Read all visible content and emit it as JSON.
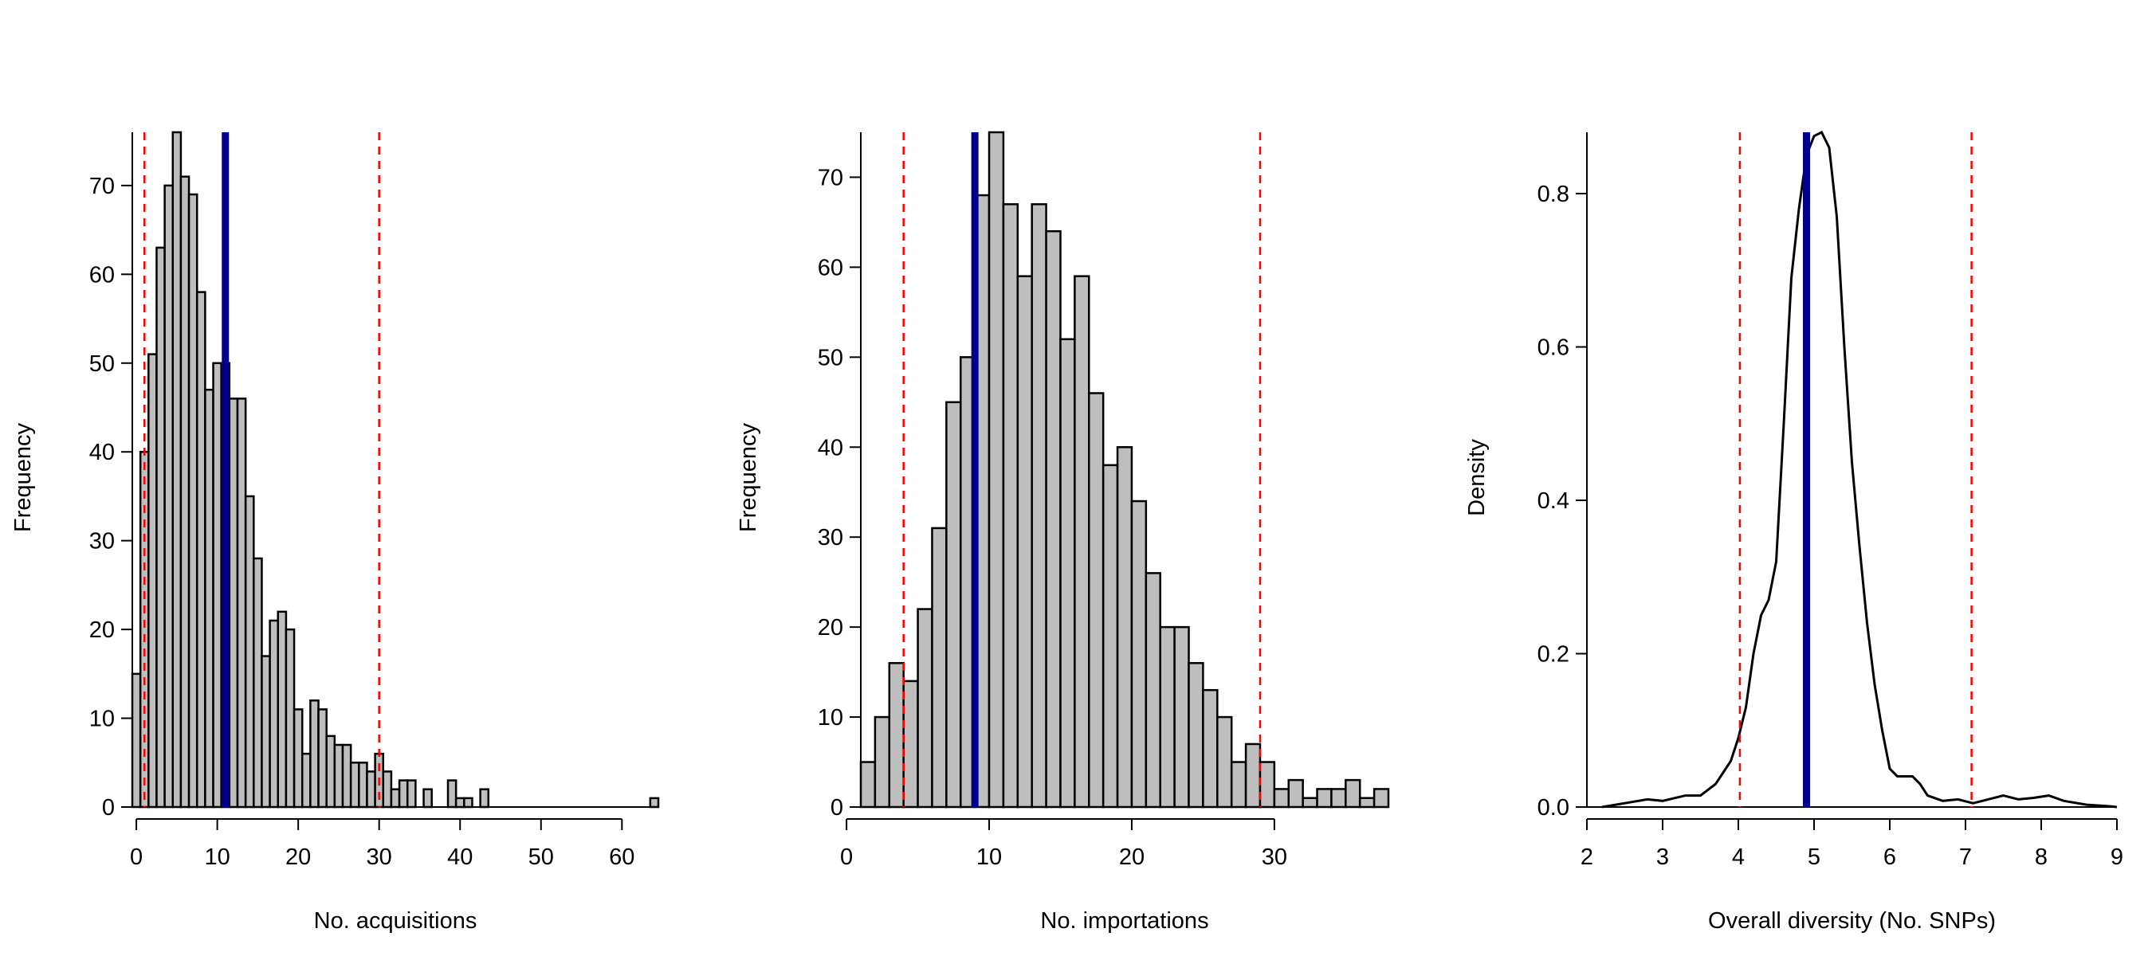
{
  "chart_data": [
    {
      "type": "bar",
      "subtype": "histogram",
      "title": "",
      "xlabel": "No. acquisitions",
      "ylabel": "Frequency",
      "xlim": [
        -0.5,
        64.5
      ],
      "ylim": [
        0,
        76
      ],
      "xticks": [
        0,
        10,
        20,
        30,
        40,
        50,
        60
      ],
      "yticks": [
        0,
        10,
        20,
        30,
        40,
        50,
        60,
        70
      ],
      "bin_start": -0.5,
      "bin_width": 1,
      "values": [
        15,
        40,
        51,
        63,
        70,
        76,
        71,
        69,
        58,
        47,
        50,
        50,
        46,
        46,
        35,
        28,
        17,
        21,
        22,
        20,
        11,
        6,
        12,
        11,
        8,
        7,
        7,
        5,
        5,
        4,
        6,
        4,
        2,
        3,
        3,
        0,
        2,
        0,
        0,
        3,
        1,
        1,
        0,
        2,
        0,
        0,
        0,
        0,
        0,
        0,
        0,
        0,
        0,
        0,
        0,
        0,
        0,
        0,
        0,
        0,
        0,
        0,
        0,
        0,
        1
      ],
      "observed": 11,
      "interval": [
        1,
        30
      ],
      "colors": {
        "bar": "#bebebe",
        "observed": "#00008b",
        "interval": "#ff0000"
      }
    },
    {
      "type": "bar",
      "subtype": "histogram",
      "title": "",
      "xlabel": "No. importations",
      "ylabel": "Frequency",
      "xlim": [
        1,
        38
      ],
      "ylim": [
        0,
        75
      ],
      "xticks": [
        0,
        10,
        20,
        30
      ],
      "yticks": [
        0,
        10,
        20,
        30,
        40,
        50,
        60,
        70
      ],
      "bin_start": 1,
      "bin_width": 1,
      "values": [
        5,
        10,
        16,
        14,
        22,
        31,
        45,
        50,
        68,
        75,
        67,
        59,
        67,
        64,
        52,
        59,
        46,
        38,
        40,
        34,
        26,
        20,
        20,
        16,
        13,
        10,
        5,
        7,
        5,
        2,
        3,
        1,
        2,
        2,
        3,
        1,
        2
      ],
      "observed": 9,
      "interval": [
        4,
        29
      ],
      "colors": {
        "bar": "#bebebe",
        "observed": "#00008b",
        "interval": "#ff0000"
      }
    },
    {
      "type": "line",
      "subtype": "density",
      "title": "",
      "xlabel": "Overall diversity (No. SNPs)",
      "ylabel": "Density",
      "xlim": [
        2,
        9
      ],
      "ylim": [
        0,
        0.88
      ],
      "xticks": [
        2,
        3,
        4,
        5,
        6,
        7,
        8,
        9
      ],
      "yticks": [
        0.0,
        0.2,
        0.4,
        0.6,
        0.8
      ],
      "ytick_labels": [
        "0.0",
        "0.2",
        "0.4",
        "0.6",
        "0.8"
      ],
      "x": [
        2.2,
        2.5,
        2.8,
        3.0,
        3.3,
        3.5,
        3.7,
        3.9,
        4.0,
        4.1,
        4.2,
        4.3,
        4.4,
        4.5,
        4.6,
        4.7,
        4.8,
        4.9,
        5.0,
        5.1,
        5.2,
        5.3,
        5.4,
        5.5,
        5.6,
        5.7,
        5.8,
        5.9,
        6.0,
        6.1,
        6.2,
        6.3,
        6.4,
        6.5,
        6.7,
        6.9,
        7.1,
        7.3,
        7.5,
        7.7,
        7.9,
        8.1,
        8.3,
        8.6,
        8.9,
        9.0
      ],
      "y": [
        0.0,
        0.005,
        0.01,
        0.008,
        0.015,
        0.015,
        0.03,
        0.06,
        0.09,
        0.13,
        0.2,
        0.25,
        0.27,
        0.32,
        0.5,
        0.69,
        0.78,
        0.85,
        0.875,
        0.88,
        0.86,
        0.77,
        0.6,
        0.45,
        0.34,
        0.24,
        0.16,
        0.1,
        0.05,
        0.04,
        0.04,
        0.04,
        0.03,
        0.015,
        0.008,
        0.01,
        0.005,
        0.01,
        0.015,
        0.01,
        0.012,
        0.015,
        0.008,
        0.003,
        0.001,
        0.0
      ],
      "observed": 4.9,
      "interval": [
        4.02,
        7.08
      ],
      "colors": {
        "line": "#000000",
        "observed": "#00008b",
        "interval": "#ff0000"
      }
    }
  ]
}
